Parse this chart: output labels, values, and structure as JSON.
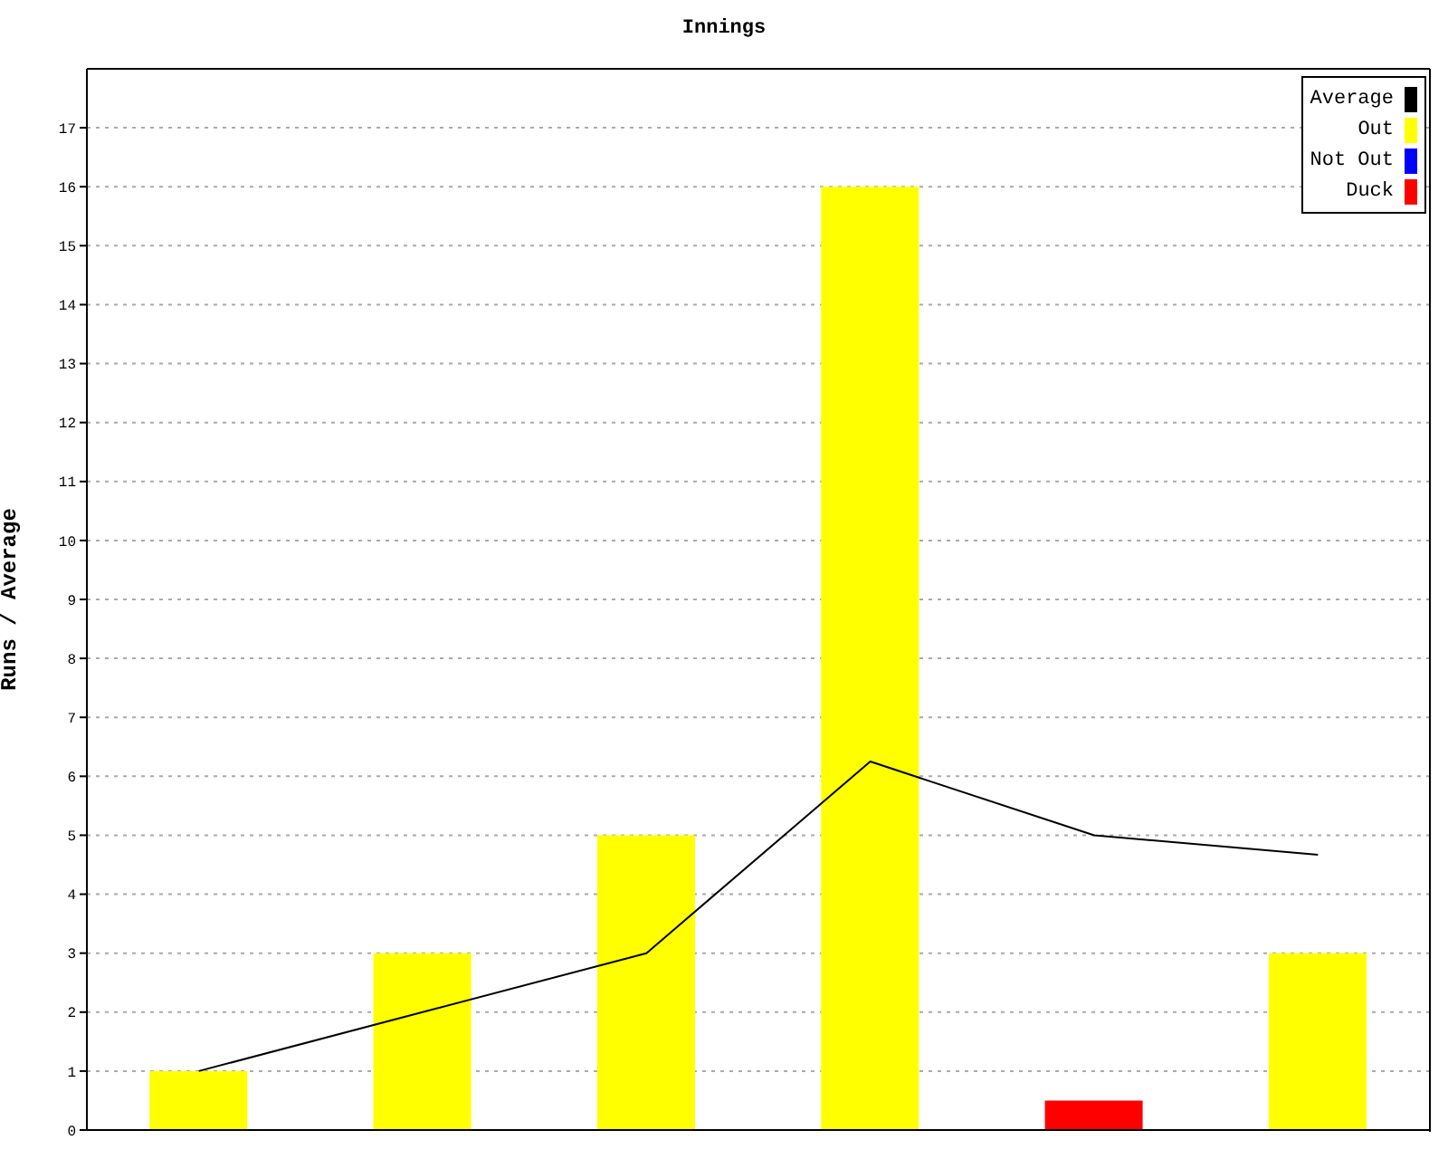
{
  "chart_data": {
    "type": "bar",
    "title": "Innings",
    "ylabel": "Runs / Average",
    "categories": [
      null,
      null,
      null,
      null,
      null,
      null
    ],
    "series": [
      {
        "name": "Average",
        "type": "line",
        "color": "#000000",
        "values": [
          1,
          2,
          3,
          6.25,
          5,
          4.67
        ]
      },
      {
        "name": "Out",
        "color": "#ffff00",
        "values": [
          1,
          3,
          5,
          16,
          null,
          3
        ]
      },
      {
        "name": "Not Out",
        "color": "#0000ff",
        "values": [
          null,
          null,
          null,
          null,
          null,
          null
        ]
      },
      {
        "name": "Duck",
        "color": "#ff0000",
        "values": [
          null,
          null,
          null,
          null,
          0.5,
          null
        ]
      }
    ],
    "stacked": true,
    "ylim": [
      0,
      18
    ],
    "yticks": [
      0,
      1,
      2,
      3,
      4,
      5,
      6,
      7,
      8,
      9,
      10,
      11,
      12,
      13,
      14,
      15,
      16,
      17
    ],
    "grid": "y",
    "legend": "top right",
    "marker": "none",
    "line_style": "solid"
  }
}
